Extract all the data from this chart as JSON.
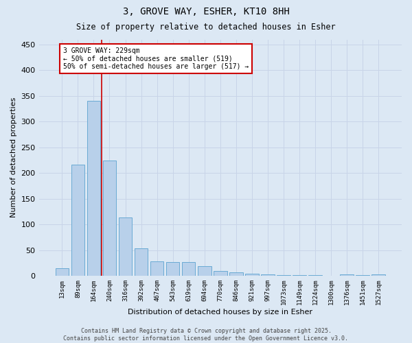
{
  "title_line1": "3, GROVE WAY, ESHER, KT10 8HH",
  "title_line2": "Size of property relative to detached houses in Esher",
  "xlabel": "Distribution of detached houses by size in Esher",
  "ylabel": "Number of detached properties",
  "categories": [
    "13sqm",
    "89sqm",
    "164sqm",
    "240sqm",
    "316sqm",
    "392sqm",
    "467sqm",
    "543sqm",
    "619sqm",
    "694sqm",
    "770sqm",
    "846sqm",
    "921sqm",
    "997sqm",
    "1073sqm",
    "1149sqm",
    "1224sqm",
    "1300sqm",
    "1376sqm",
    "1451sqm",
    "1527sqm"
  ],
  "values": [
    15,
    216,
    340,
    224,
    113,
    54,
    28,
    27,
    26,
    18,
    9,
    6,
    4,
    2,
    1,
    1,
    1,
    0,
    3,
    1,
    2
  ],
  "bar_color": "#b8d0ea",
  "bar_edgecolor": "#6aaad4",
  "vline_color": "#cc0000",
  "annotation_text": "3 GROVE WAY: 229sqm\n← 50% of detached houses are smaller (519)\n50% of semi-detached houses are larger (517) →",
  "annotation_box_edgecolor": "#cc0000",
  "annotation_box_facecolor": "#ffffff",
  "ylim": [
    0,
    460
  ],
  "yticks": [
    0,
    50,
    100,
    150,
    200,
    250,
    300,
    350,
    400,
    450
  ],
  "grid_color": "#c8d4e8",
  "background_color": "#dce8f4",
  "footer_text": "Contains HM Land Registry data © Crown copyright and database right 2025.\nContains public sector information licensed under the Open Government Licence v3.0."
}
